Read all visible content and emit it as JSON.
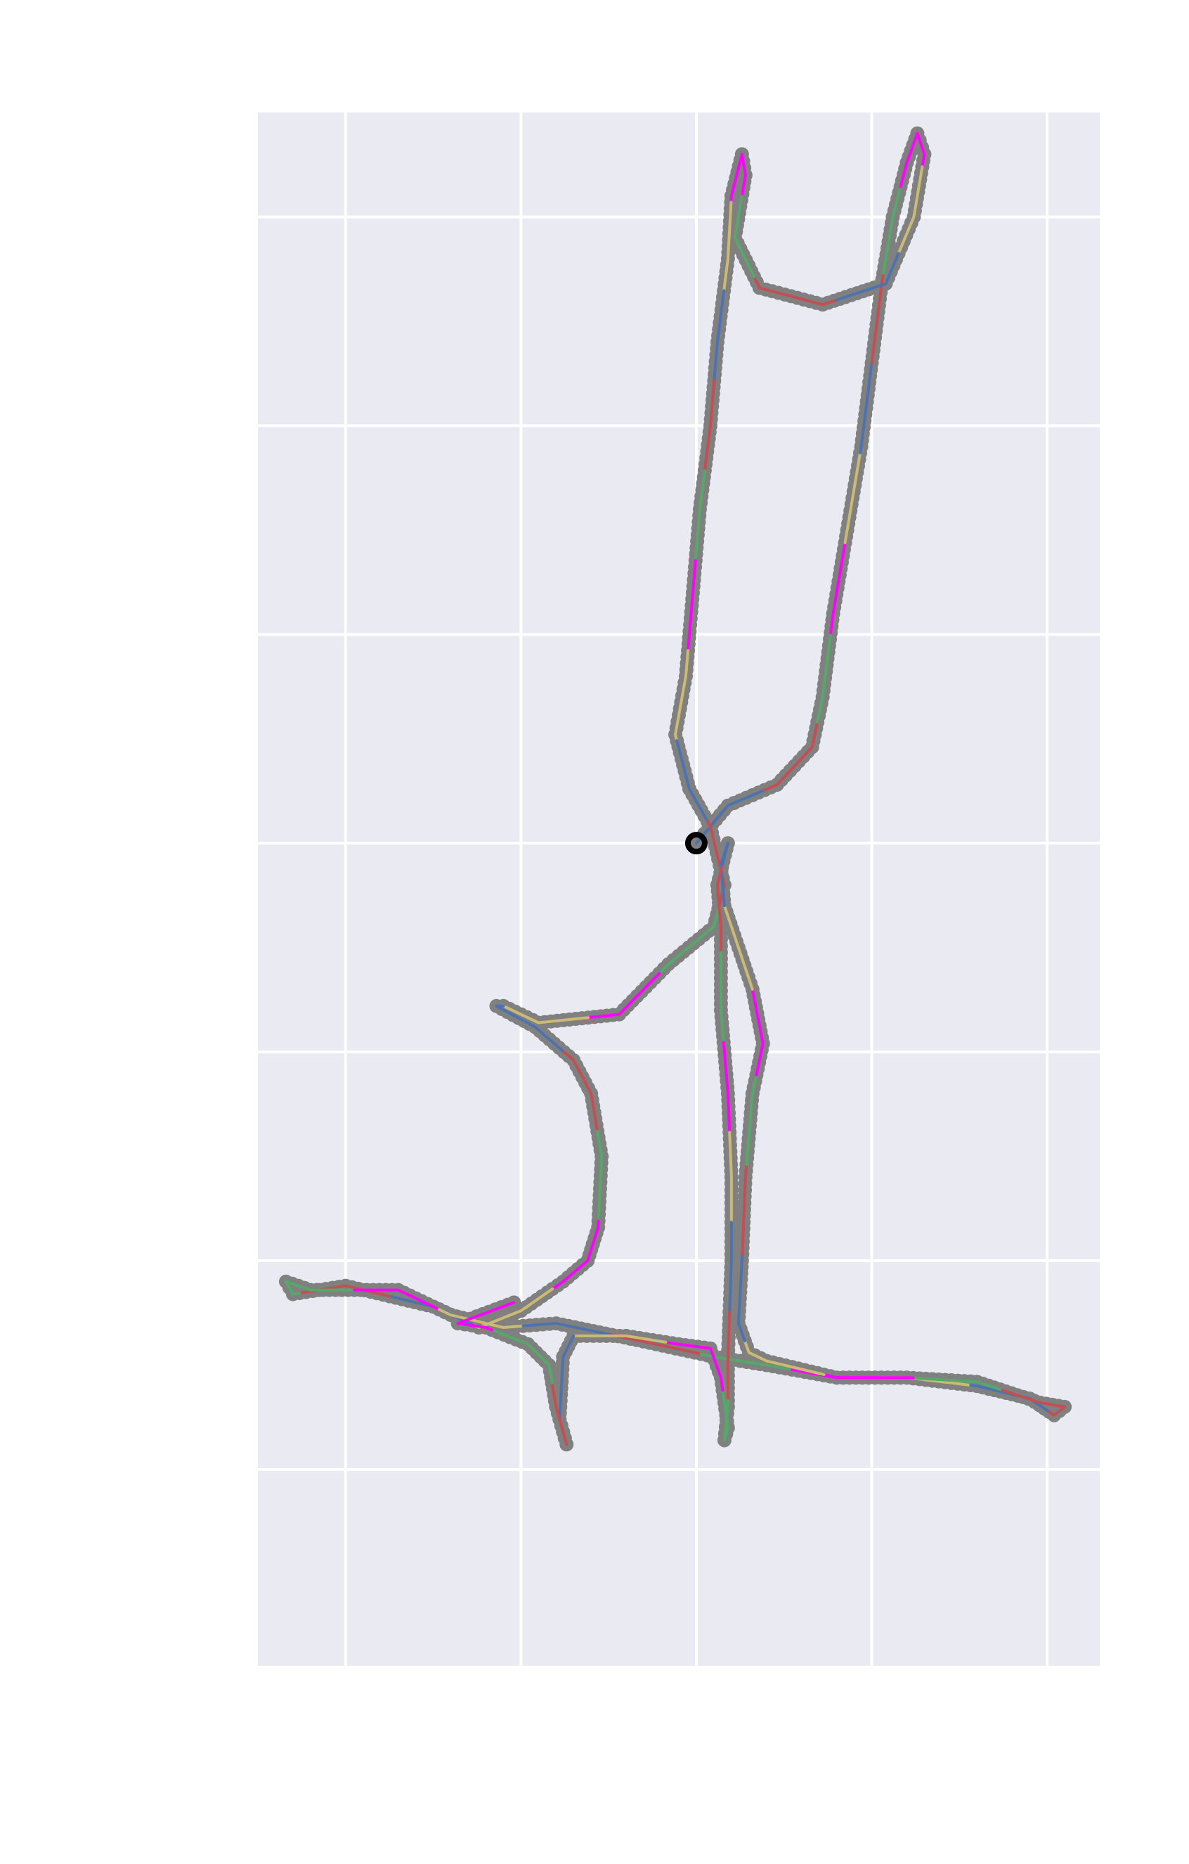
{
  "chart_data": {
    "type": "line",
    "title": "",
    "xlabel": "",
    "ylabel": "",
    "xlim": [
      -2.5,
      21.5
    ],
    "ylim": [
      -8.7,
      28.5
    ],
    "xgrid": [
      0,
      5,
      10,
      15,
      20
    ],
    "ygrid": [
      -4,
      1,
      6,
      11,
      16,
      21,
      26
    ],
    "grid": true,
    "legend": "none",
    "colors": {
      "plot_bg": "#eaeaf2",
      "grid": "#ffffff",
      "markers": "#808080",
      "series": [
        "#4c72b0",
        "#c44e52",
        "#55a868",
        "#ff00ff",
        "#ccb974"
      ],
      "start_marker": "#000000"
    },
    "series": [
      {
        "values": [
          [
            10,
            11
          ],
          [
            10.9,
            11.9
          ],
          [
            12.3,
            12.4
          ],
          [
            13.3,
            13.3
          ],
          [
            13.6,
            14.5
          ],
          [
            13.9,
            16.5
          ],
          [
            14.3,
            18.5
          ],
          [
            14.7,
            20.5
          ],
          [
            15.0,
            22.5
          ],
          [
            15.3,
            24.5
          ],
          [
            15.6,
            26.0
          ],
          [
            16.0,
            27.3
          ],
          [
            16.3,
            28.0
          ],
          [
            16.5,
            27.5
          ],
          [
            16.2,
            26.0
          ],
          [
            15.4,
            24.4
          ],
          [
            13.6,
            23.9
          ],
          [
            11.8,
            24.3
          ],
          [
            11.1,
            25.5
          ],
          [
            11.4,
            27.0
          ],
          [
            11.3,
            27.5
          ],
          [
            11.0,
            26.5
          ],
          [
            10.9,
            25.0
          ],
          [
            10.6,
            23.0
          ],
          [
            10.4,
            21.0
          ],
          [
            10.1,
            19.0
          ],
          [
            9.9,
            17.0
          ],
          [
            9.7,
            15.0
          ],
          [
            9.4,
            13.6
          ],
          [
            9.8,
            12.3
          ],
          [
            10.4,
            11.4
          ],
          [
            10.8,
            10.0
          ],
          [
            10.5,
            9.0
          ],
          [
            9.2,
            8.1
          ],
          [
            7.8,
            6.9
          ],
          [
            5.5,
            6.7
          ],
          [
            4.5,
            7.1
          ],
          [
            4.3,
            7.1
          ],
          [
            5.4,
            6.6
          ],
          [
            6.5,
            5.8
          ],
          [
            7.0,
            5.0
          ],
          [
            7.3,
            3.5
          ],
          [
            7.2,
            1.8
          ],
          [
            6.9,
            1.0
          ],
          [
            6.2,
            0.5
          ],
          [
            5.0,
            -0.2
          ],
          [
            3.8,
            -0.6
          ],
          [
            2.5,
            -0.1
          ],
          [
            0,
            0.4
          ],
          [
            -1.5,
            0.2
          ],
          [
            -1.7,
            0.5
          ],
          [
            -1.0,
            0.3
          ],
          [
            1.5,
            0.3
          ],
          [
            3.0,
            -0.3
          ],
          [
            4.5,
            -0.6
          ],
          [
            6.0,
            -0.5
          ],
          [
            8.3,
            -0.9
          ],
          [
            10.5,
            -1.3
          ],
          [
            12.0,
            -1.5
          ],
          [
            14.0,
            -1.8
          ],
          [
            16.0,
            -1.8
          ],
          [
            18.0,
            -2.0
          ],
          [
            19.5,
            -2.3
          ],
          [
            20.2,
            -2.7
          ],
          [
            20.5,
            -2.5
          ],
          [
            19.8,
            -2.4
          ],
          [
            18.0,
            -1.9
          ],
          [
            16.0,
            -1.8
          ],
          [
            14.0,
            -1.8
          ],
          [
            12.0,
            -1.4
          ],
          [
            11.5,
            -1.2
          ],
          [
            11.2,
            -0.5
          ],
          [
            11.3,
            1.0
          ],
          [
            11.4,
            3.0
          ],
          [
            11.6,
            5.0
          ],
          [
            11.9,
            6.2
          ],
          [
            11.6,
            7.5
          ],
          [
            11.2,
            8.5
          ],
          [
            10.8,
            9.5
          ],
          [
            10.7,
            10.5
          ],
          [
            10.9,
            11.0
          ],
          [
            10.6,
            10.0
          ],
          [
            10.7,
            9.0
          ],
          [
            10.7,
            7.0
          ],
          [
            10.9,
            5.0
          ],
          [
            11.0,
            3.0
          ],
          [
            11.0,
            1.0
          ],
          [
            10.9,
            -1.3
          ],
          [
            10.9,
            -2.5
          ],
          [
            10.8,
            -3.3
          ],
          [
            10.9,
            -3.0
          ],
          [
            10.7,
            -1.8
          ],
          [
            10.4,
            -1.1
          ],
          [
            9.5,
            -1.0
          ],
          [
            8.0,
            -0.8
          ],
          [
            6.5,
            -0.8
          ],
          [
            6.2,
            -1.3
          ],
          [
            6.1,
            -2.8
          ],
          [
            6.3,
            -3.4
          ],
          [
            6.0,
            -2.5
          ],
          [
            5.8,
            -1.5
          ],
          [
            5.2,
            -1.0
          ],
          [
            4.0,
            -0.6
          ],
          [
            3.2,
            -0.5
          ],
          [
            4.8,
            0.0
          ]
        ]
      }
    ],
    "start_point": [
      10,
      11
    ]
  }
}
